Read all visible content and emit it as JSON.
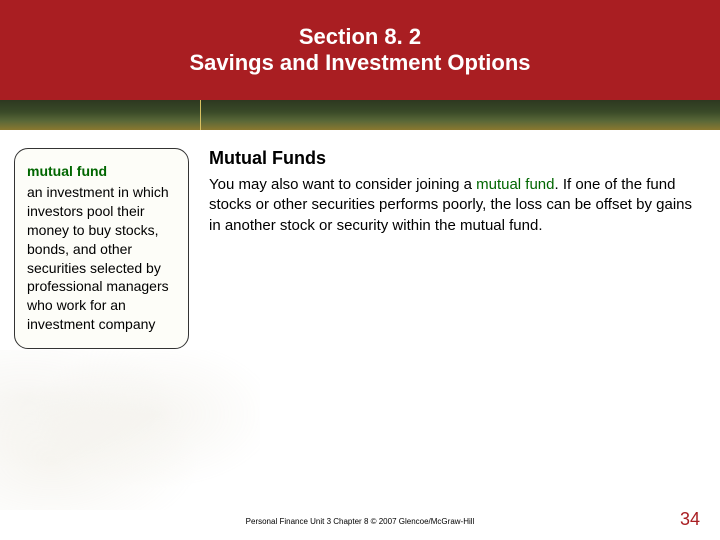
{
  "header": {
    "line1": "Section 8. 2",
    "line2": "Savings and Investment Options"
  },
  "colors": {
    "header_bg": "#a91e22",
    "term_color": "#006600",
    "highlight_color": "#006600",
    "page_num_color": "#a91e22"
  },
  "sidebar": {
    "term": "mutual fund",
    "definition": "an investment in which investors pool their money to buy stocks, bonds, and other securities selected by professional managers who work for an investment company"
  },
  "main": {
    "heading": "Mutual Funds",
    "body_pre": "You may also want to consider joining a ",
    "body_highlight": "mutual fund",
    "body_post": ". If one of the fund stocks or other securities performs poorly, the loss can be offset by gains in another stock or security within the mutual fund."
  },
  "footer": {
    "text": "Personal Finance  Unit 3  Chapter 8  © 2007 Glencoe/McGraw-Hill"
  },
  "page_number": "34"
}
